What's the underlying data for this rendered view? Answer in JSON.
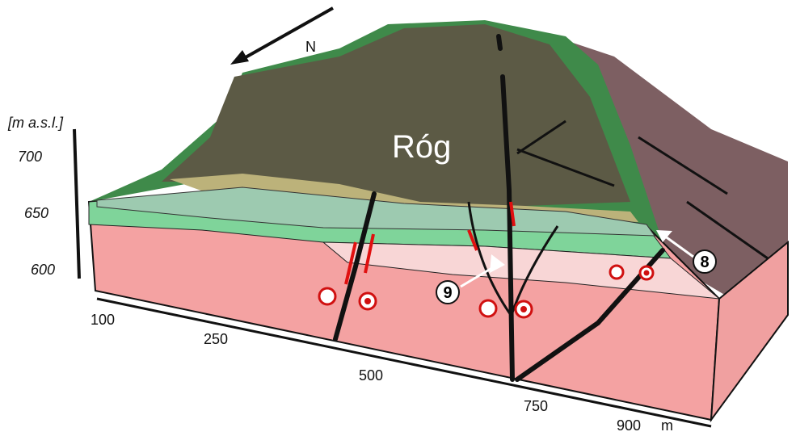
{
  "north_arrow": {
    "label": "N"
  },
  "vertical_axis": {
    "unit": "[m a.s.l.]",
    "ticks": [
      "700",
      "650",
      "600"
    ]
  },
  "horizontal_axis": {
    "ticks": [
      "100",
      "250",
      "500",
      "750",
      "900"
    ],
    "unit": "m"
  },
  "summit": {
    "label": "Róg"
  },
  "callouts": [
    "9",
    "8"
  ]
}
